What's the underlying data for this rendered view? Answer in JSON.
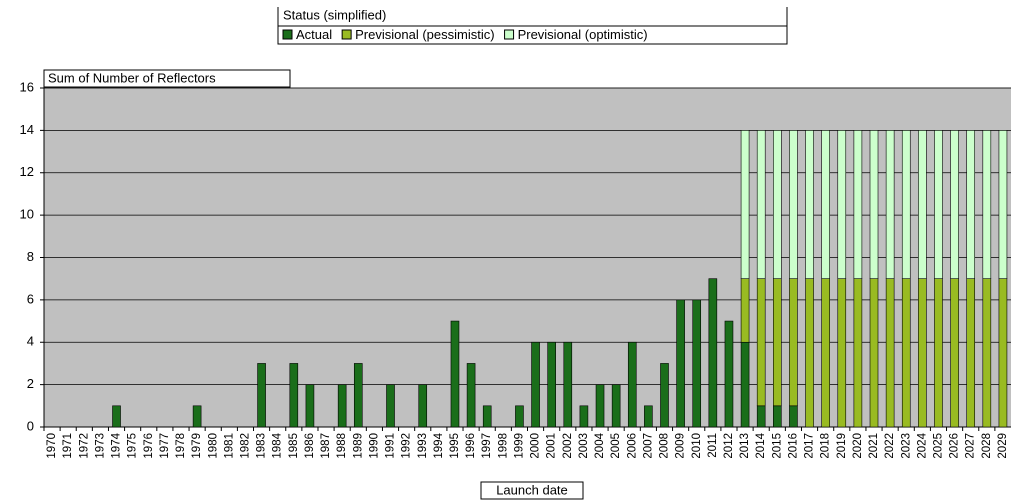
{
  "chart_data": {
    "type": "stacked_bar",
    "y_axis_label": "Sum of Number of Reflectors",
    "x_axis_label": "Launch date",
    "legend_title": "Status (simplified)",
    "legend_position": "top",
    "grid": true,
    "ylim": [
      0,
      16
    ],
    "yticks": [
      0,
      2,
      4,
      6,
      8,
      10,
      12,
      14,
      16
    ],
    "categories": [
      "1970",
      "1971",
      "1972",
      "1973",
      "1974",
      "1975",
      "1976",
      "1977",
      "1978",
      "1979",
      "1980",
      "1981",
      "1982",
      "1983",
      "1984",
      "1985",
      "1986",
      "1987",
      "1988",
      "1989",
      "1990",
      "1991",
      "1992",
      "1993",
      "1994",
      "1995",
      "1996",
      "1997",
      "1998",
      "1999",
      "2000",
      "2001",
      "2002",
      "2003",
      "2004",
      "2005",
      "2006",
      "2007",
      "2008",
      "2009",
      "2010",
      "2011",
      "2012",
      "2013",
      "2014",
      "2015",
      "2016",
      "2017",
      "2018",
      "2019",
      "2020",
      "2021",
      "2022",
      "2023",
      "2024",
      "2025",
      "2026",
      "2027",
      "2028",
      "2029"
    ],
    "series": [
      {
        "name": "Actual",
        "color": "#1a6e1a",
        "values": [
          0,
          0,
          0,
          0,
          1,
          0,
          0,
          0,
          0,
          1,
          0,
          0,
          0,
          3,
          0,
          3,
          2,
          0,
          2,
          3,
          0,
          2,
          0,
          2,
          0,
          5,
          3,
          1,
          0,
          1,
          4,
          4,
          4,
          1,
          2,
          2,
          4,
          1,
          3,
          6,
          6,
          7,
          5,
          4,
          1,
          1,
          1,
          0,
          0,
          0,
          0,
          0,
          0,
          0,
          0,
          0,
          0,
          0,
          0,
          0
        ]
      },
      {
        "name": "Previsional (pessimistic)",
        "color": "#99bb22",
        "values": [
          0,
          0,
          0,
          0,
          0,
          0,
          0,
          0,
          0,
          0,
          0,
          0,
          0,
          0,
          0,
          0,
          0,
          0,
          0,
          0,
          0,
          0,
          0,
          0,
          0,
          0,
          0,
          0,
          0,
          0,
          0,
          0,
          0,
          0,
          0,
          0,
          0,
          0,
          0,
          0,
          0,
          0,
          0,
          3,
          6,
          6,
          6,
          7,
          7,
          7,
          7,
          7,
          7,
          7,
          7,
          7,
          7,
          7,
          7,
          7
        ]
      },
      {
        "name": "Previsional (optimistic)",
        "color": "#ccffcc",
        "values": [
          0,
          0,
          0,
          0,
          0,
          0,
          0,
          0,
          0,
          0,
          0,
          0,
          0,
          0,
          0,
          0,
          0,
          0,
          0,
          0,
          0,
          0,
          0,
          0,
          0,
          0,
          0,
          0,
          0,
          0,
          0,
          0,
          0,
          0,
          0,
          0,
          0,
          0,
          0,
          0,
          0,
          0,
          0,
          7,
          7,
          7,
          7,
          7,
          7,
          7,
          7,
          7,
          7,
          7,
          7,
          7,
          7,
          7,
          7,
          7
        ]
      }
    ]
  }
}
